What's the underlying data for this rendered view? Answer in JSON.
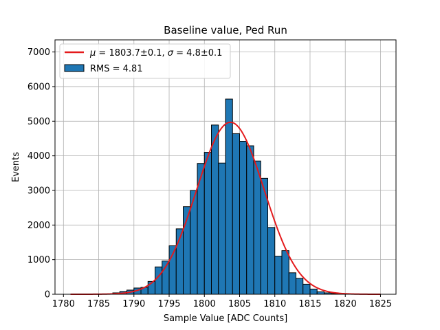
{
  "chart_data": {
    "type": "bar",
    "title": "Baseline value, Ped Run",
    "xlabel": "Sample Value [ADC Counts]",
    "ylabel": "Events",
    "xlim": [
      1778.8,
      1827.2
    ],
    "ylim": [
      0,
      7350
    ],
    "grid": true,
    "legend_position": "top-left",
    "x_ticks": [
      1780,
      1785,
      1790,
      1795,
      1800,
      1805,
      1810,
      1815,
      1820,
      1825
    ],
    "y_ticks": [
      0,
      1000,
      2000,
      3000,
      4000,
      5000,
      6000,
      7000
    ],
    "bin_width": 1,
    "bin_start": 1781,
    "values": [
      0,
      0,
      0,
      0,
      0,
      10,
      40,
      80,
      120,
      180,
      200,
      370,
      790,
      960,
      1400,
      1890,
      2530,
      3000,
      3780,
      4100,
      4890,
      3790,
      5640,
      4640,
      4420,
      4290,
      3850,
      3350,
      1930,
      1100,
      1260,
      620,
      460,
      290,
      150,
      70,
      40,
      20,
      0,
      0,
      0,
      0,
      0,
      0
    ],
    "fit": {
      "mu": 1803.7,
      "sigma": 4.8,
      "amplitude": 4970,
      "x_range": [
        1781,
        1825
      ]
    },
    "legend": [
      {
        "label": "$\\mu = 1803.7\\pm0.1$, $\\sigma = 4.8\\pm0.1$",
        "type": "line",
        "color": "#e41a1c"
      },
      {
        "label": "RMS = 4.81",
        "type": "patch",
        "color": "#1f77b4"
      }
    ],
    "legend_display": {
      "fit_mu_symbol": "μ",
      "fit_mu_value": " = 1803.7±0.1, ",
      "fit_sigma_symbol": "σ",
      "fit_sigma_value": " = 4.8±0.1",
      "rms_label": "RMS = 4.81"
    },
    "colors": {
      "bar_fill": "#1f77b4",
      "bar_edge": "#000000",
      "fit_line": "#e41a1c",
      "grid": "#b0b0b0"
    }
  }
}
